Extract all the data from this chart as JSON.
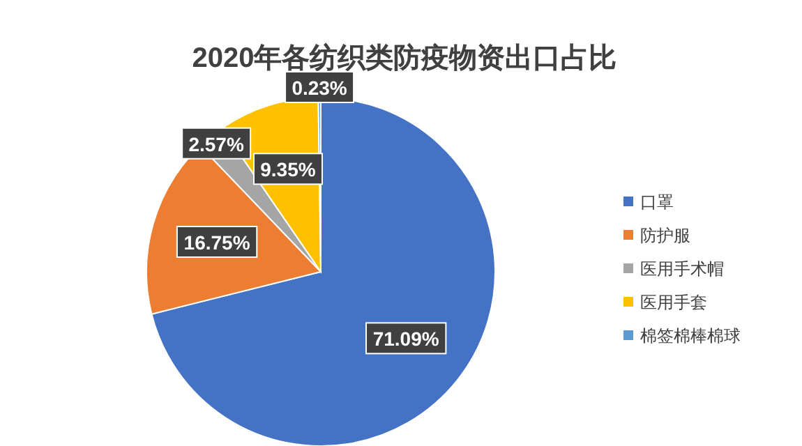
{
  "chart_data": {
    "type": "pie",
    "title": "2020年各纺织类防疫物资出口占比",
    "categories": [
      "口罩",
      "防护服",
      "医用手术帽",
      "医用手套",
      "棉签棉棒棉球"
    ],
    "values": [
      71.09,
      16.75,
      2.57,
      9.35,
      0.23
    ],
    "colors": [
      "#4472c4",
      "#ed7d31",
      "#a5a5a5",
      "#ffc000",
      "#5b9bd5"
    ],
    "value_labels": [
      "71.09%",
      "16.75%",
      "2.57%",
      "9.35%",
      "0.23%"
    ],
    "legend": "right"
  }
}
